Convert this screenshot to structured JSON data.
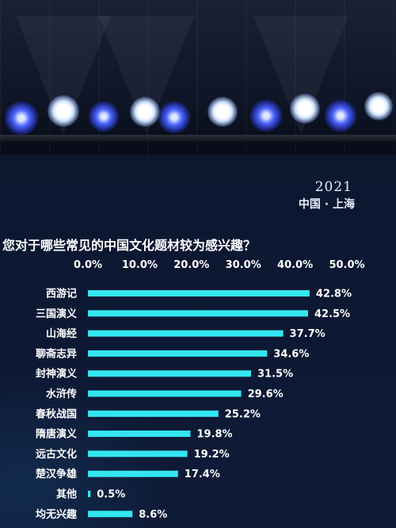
{
  "year": "2021",
  "location": "中国 · 上海",
  "chart_data": {
    "type": "bar",
    "orientation": "horizontal",
    "title": "您对于哪些常见的中国文化题材较为感兴趣？",
    "xlabel": "",
    "ylabel": "",
    "xlim": [
      0,
      50
    ],
    "x_ticks": [
      "0.0%",
      "10.0%",
      "20.0%",
      "30.0%",
      "40.0%",
      "50.0%"
    ],
    "grid": false,
    "bar_color": "#33e6f0",
    "categories": [
      "西游记",
      "三国演义",
      "山海经",
      "聊斋志异",
      "封神演义",
      "水浒传",
      "春秋战国",
      "隋唐演义",
      "远古文化",
      "楚汉争雄",
      "其他",
      "均无兴趣"
    ],
    "values": [
      42.8,
      42.5,
      37.7,
      34.6,
      31.5,
      29.6,
      25.2,
      19.8,
      19.2,
      17.4,
      0.5,
      8.6
    ],
    "value_labels": [
      "42.8%",
      "42.5%",
      "37.7%",
      "34.6%",
      "31.5%",
      "29.6%",
      "25.2%",
      "19.8%",
      "19.2%",
      "17.4%",
      "0.5%",
      "8.6%"
    ]
  }
}
